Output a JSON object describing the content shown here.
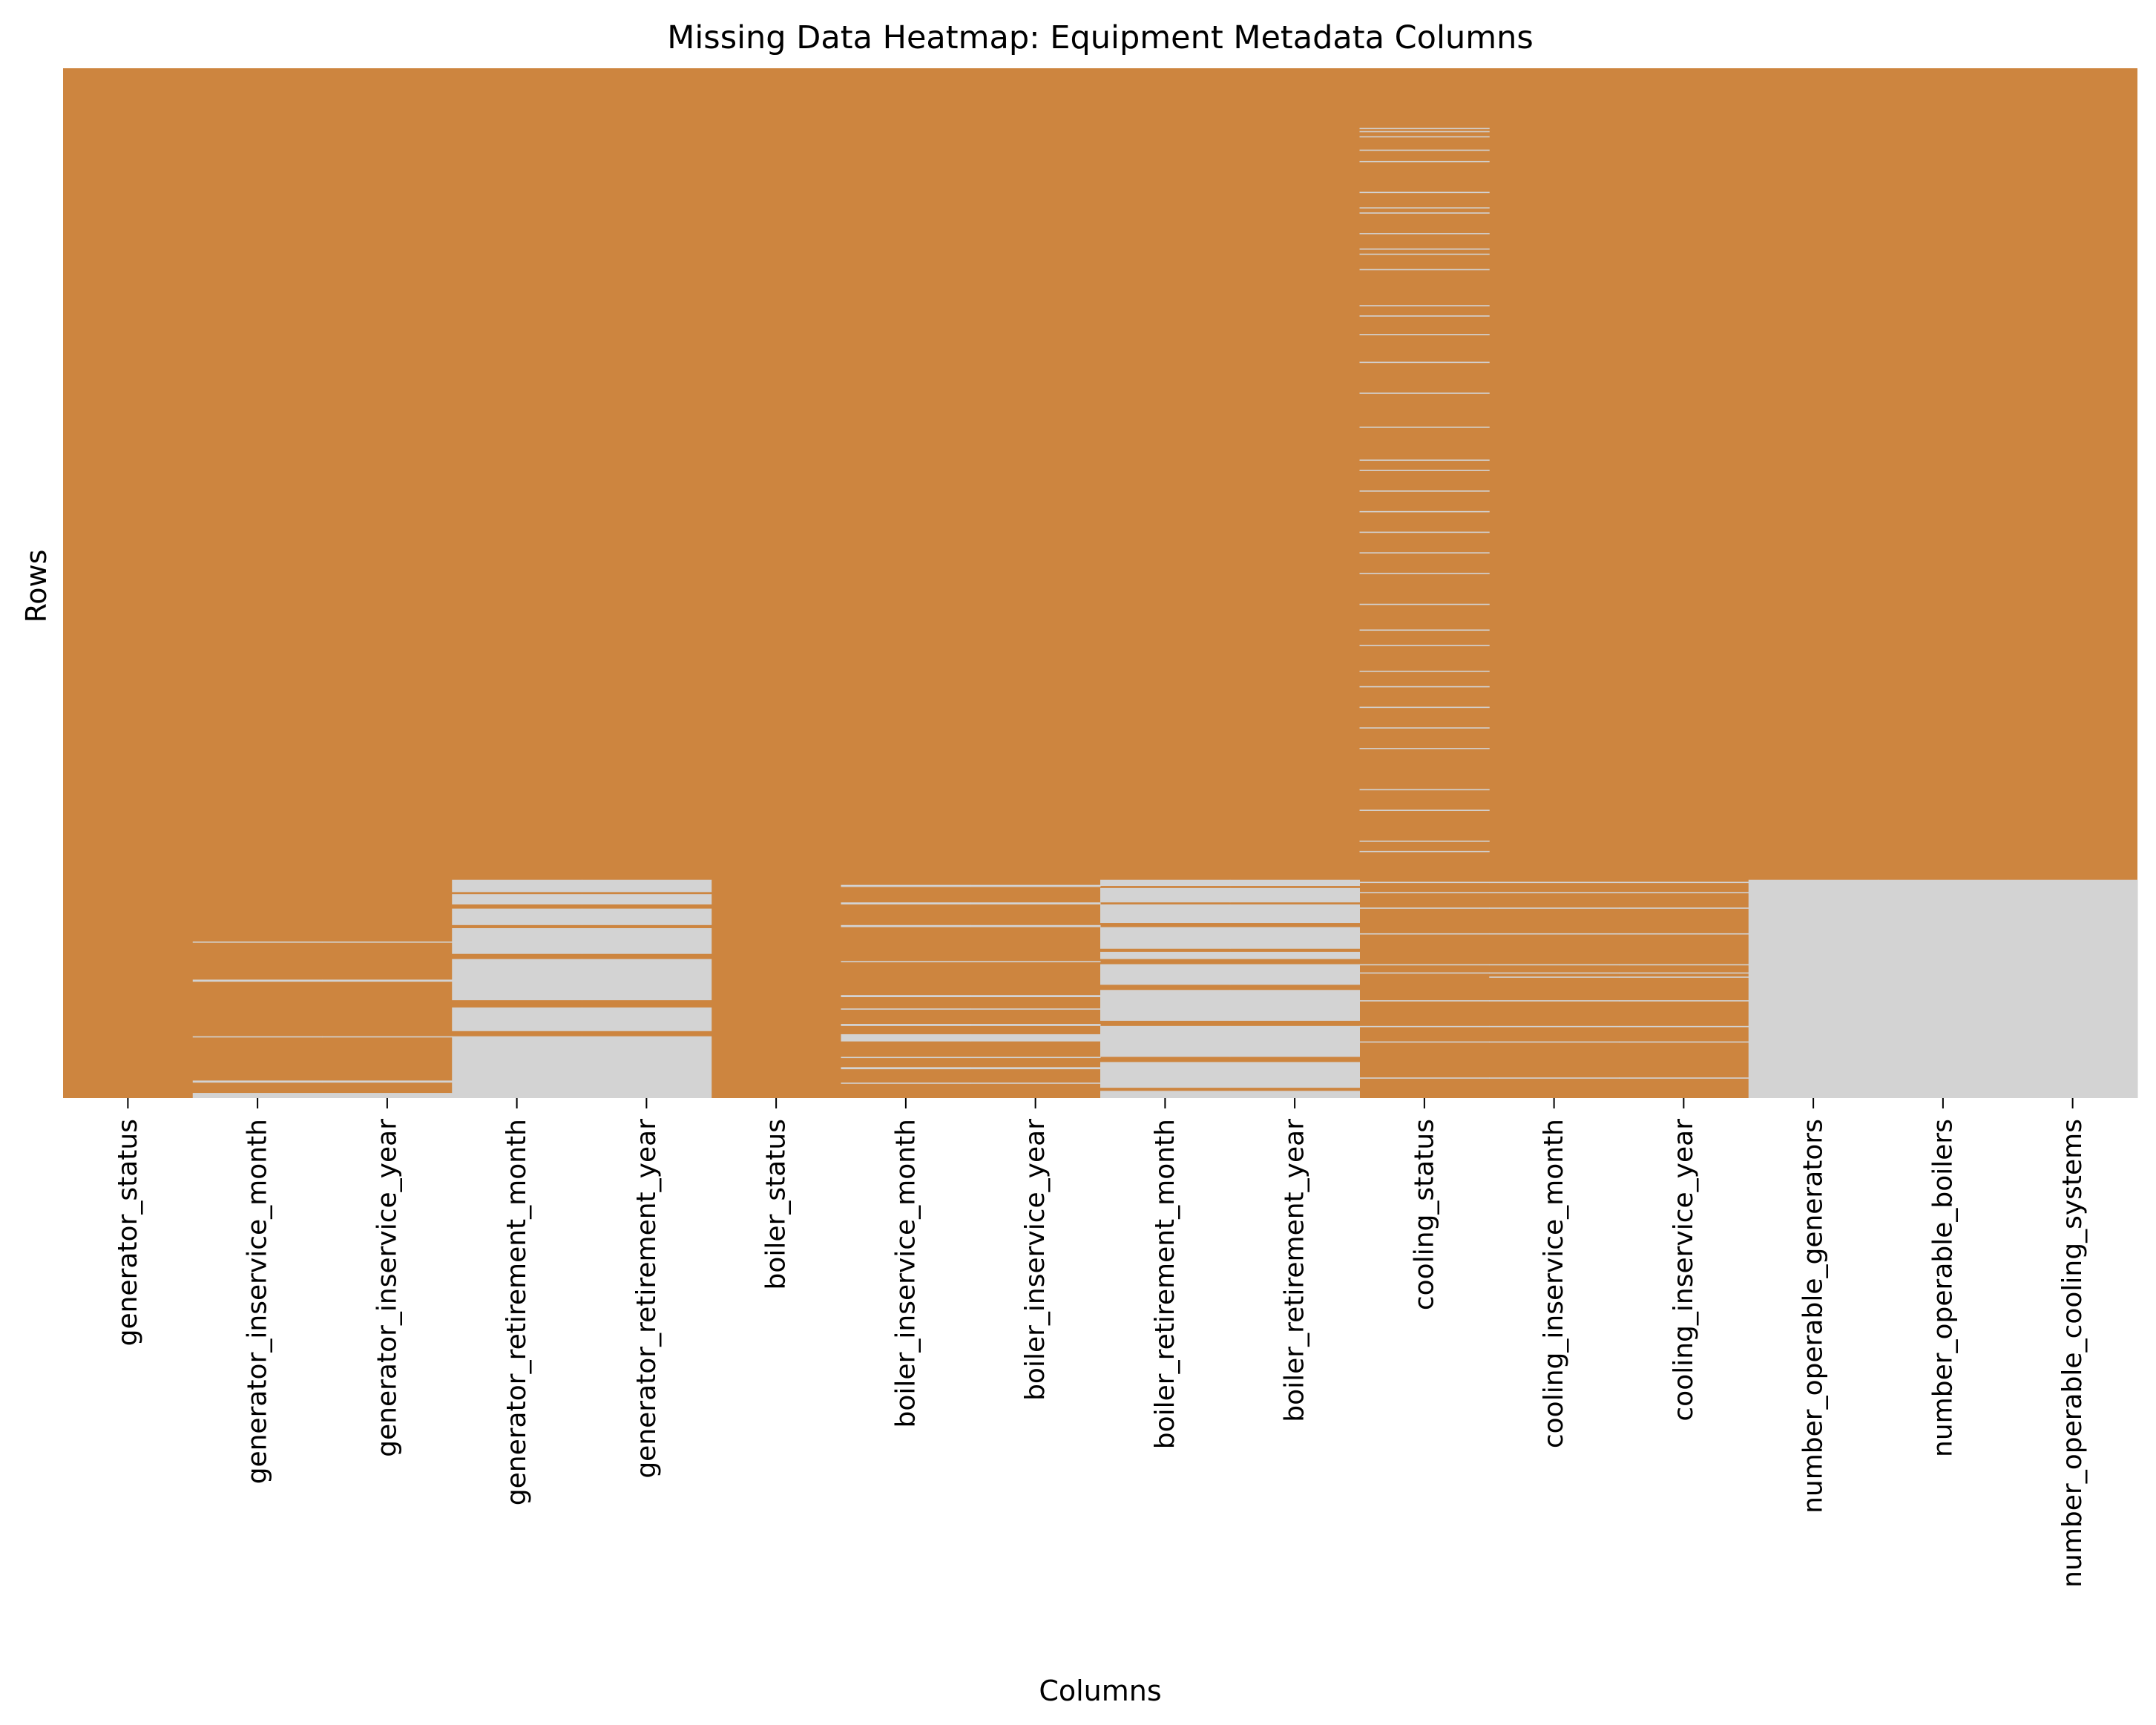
{
  "chart_data": {
    "type": "heatmap",
    "title": "Missing Data Heatmap: Equipment Metadata Columns",
    "xlabel": "Columns",
    "ylabel": "Rows",
    "colors": {
      "present": "#cd853f",
      "missing": "#d3d3d3"
    },
    "columns": [
      "generator_status",
      "generator_inservice_month",
      "generator_inservice_year",
      "generator_retirement_month",
      "generator_retirement_year",
      "boiler_status",
      "boiler_inservice_month",
      "boiler_inservice_year",
      "boiler_retirement_month",
      "boiler_retirement_year",
      "cooling_status",
      "cooling_inservice_month",
      "cooling_inservice_year",
      "number_operable_generators",
      "number_operable_boilers",
      "number_operable_cooling_systems"
    ],
    "approx_missing_fraction": [
      0.0,
      0.01,
      0.01,
      0.2,
      0.2,
      0.0,
      0.05,
      0.05,
      0.18,
      0.18,
      0.05,
      0.03,
      0.03,
      0.21,
      0.21,
      0.21
    ],
    "missing_row_ranges": [
      [],
      [
        [
          0.848,
          0.849
        ],
        [
          0.885,
          0.887
        ],
        [
          0.94,
          0.941
        ],
        [
          0.983,
          0.985
        ],
        [
          0.995,
          1.0
        ]
      ],
      [
        [
          0.848,
          0.849
        ],
        [
          0.885,
          0.887
        ],
        [
          0.94,
          0.941
        ],
        [
          0.983,
          0.985
        ],
        [
          0.995,
          1.0
        ]
      ],
      [
        [
          0.788,
          0.8
        ],
        [
          0.802,
          0.812
        ],
        [
          0.816,
          0.832
        ],
        [
          0.835,
          0.86
        ],
        [
          0.865,
          0.905
        ],
        [
          0.912,
          0.935
        ],
        [
          0.94,
          1.0
        ]
      ],
      [
        [
          0.788,
          0.8
        ],
        [
          0.802,
          0.812
        ],
        [
          0.816,
          0.832
        ],
        [
          0.835,
          0.86
        ],
        [
          0.865,
          0.905
        ],
        [
          0.912,
          0.935
        ],
        [
          0.94,
          1.0
        ]
      ],
      [],
      [
        [
          0.793,
          0.795
        ],
        [
          0.81,
          0.812
        ],
        [
          0.832,
          0.834
        ],
        [
          0.867,
          0.868
        ],
        [
          0.9,
          0.902
        ],
        [
          0.913,
          0.914
        ],
        [
          0.928,
          0.93
        ],
        [
          0.938,
          0.945
        ],
        [
          0.96,
          0.961
        ],
        [
          0.97,
          0.972
        ],
        [
          0.985,
          0.986
        ]
      ],
      [
        [
          0.793,
          0.795
        ],
        [
          0.81,
          0.812
        ],
        [
          0.832,
          0.834
        ],
        [
          0.867,
          0.868
        ],
        [
          0.9,
          0.902
        ],
        [
          0.913,
          0.914
        ],
        [
          0.928,
          0.93
        ],
        [
          0.938,
          0.945
        ],
        [
          0.96,
          0.961
        ],
        [
          0.97,
          0.972
        ],
        [
          0.985,
          0.986
        ]
      ],
      [
        [
          0.788,
          0.794
        ],
        [
          0.796,
          0.81
        ],
        [
          0.812,
          0.83
        ],
        [
          0.834,
          0.855
        ],
        [
          0.858,
          0.865
        ],
        [
          0.87,
          0.89
        ],
        [
          0.895,
          0.925
        ],
        [
          0.93,
          0.96
        ],
        [
          0.965,
          0.99
        ],
        [
          0.993,
          1.0
        ]
      ],
      [
        [
          0.788,
          0.794
        ],
        [
          0.796,
          0.81
        ],
        [
          0.812,
          0.83
        ],
        [
          0.834,
          0.855
        ],
        [
          0.858,
          0.865
        ],
        [
          0.87,
          0.89
        ],
        [
          0.895,
          0.925
        ],
        [
          0.93,
          0.96
        ],
        [
          0.965,
          0.99
        ],
        [
          0.993,
          1.0
        ]
      ],
      [
        [
          0.058,
          0.059
        ],
        [
          0.061,
          0.062
        ],
        [
          0.066,
          0.067
        ],
        [
          0.079,
          0.08
        ],
        [
          0.09,
          0.091
        ],
        [
          0.12,
          0.121
        ],
        [
          0.135,
          0.136
        ],
        [
          0.14,
          0.141
        ],
        [
          0.16,
          0.161
        ],
        [
          0.175,
          0.176
        ],
        [
          0.18,
          0.181
        ],
        [
          0.195,
          0.196
        ],
        [
          0.23,
          0.231
        ],
        [
          0.24,
          0.241
        ],
        [
          0.258,
          0.259
        ],
        [
          0.285,
          0.286
        ],
        [
          0.315,
          0.316
        ],
        [
          0.348,
          0.349
        ],
        [
          0.38,
          0.381
        ],
        [
          0.39,
          0.391
        ],
        [
          0.41,
          0.411
        ],
        [
          0.43,
          0.431
        ],
        [
          0.45,
          0.451
        ],
        [
          0.47,
          0.471
        ],
        [
          0.49,
          0.491
        ],
        [
          0.52,
          0.521
        ],
        [
          0.545,
          0.546
        ],
        [
          0.56,
          0.561
        ],
        [
          0.585,
          0.586
        ],
        [
          0.6,
          0.601
        ],
        [
          0.62,
          0.621
        ],
        [
          0.64,
          0.641
        ],
        [
          0.66,
          0.661
        ],
        [
          0.7,
          0.701
        ],
        [
          0.72,
          0.721
        ],
        [
          0.75,
          0.751
        ],
        [
          0.76,
          0.761
        ],
        [
          0.79,
          0.791
        ],
        [
          0.8,
          0.801
        ],
        [
          0.815,
          0.816
        ],
        [
          0.84,
          0.841
        ],
        [
          0.87,
          0.871
        ],
        [
          0.878,
          0.879
        ],
        [
          0.905,
          0.906
        ],
        [
          0.93,
          0.931
        ],
        [
          0.945,
          0.946
        ],
        [
          0.98,
          0.981
        ]
      ],
      [
        [
          0.79,
          0.791
        ],
        [
          0.8,
          0.801
        ],
        [
          0.815,
          0.816
        ],
        [
          0.84,
          0.841
        ],
        [
          0.87,
          0.871
        ],
        [
          0.878,
          0.879
        ],
        [
          0.882,
          0.883
        ],
        [
          0.905,
          0.906
        ],
        [
          0.93,
          0.931
        ],
        [
          0.945,
          0.946
        ],
        [
          0.98,
          0.981
        ]
      ],
      [
        [
          0.79,
          0.791
        ],
        [
          0.8,
          0.801
        ],
        [
          0.815,
          0.816
        ],
        [
          0.84,
          0.841
        ],
        [
          0.87,
          0.871
        ],
        [
          0.878,
          0.879
        ],
        [
          0.882,
          0.883
        ],
        [
          0.905,
          0.906
        ],
        [
          0.93,
          0.931
        ],
        [
          0.945,
          0.946
        ],
        [
          0.98,
          0.981
        ]
      ],
      [
        [
          0.788,
          1.0
        ]
      ],
      [
        [
          0.788,
          1.0
        ]
      ],
      [
        [
          0.788,
          1.0
        ]
      ]
    ]
  }
}
